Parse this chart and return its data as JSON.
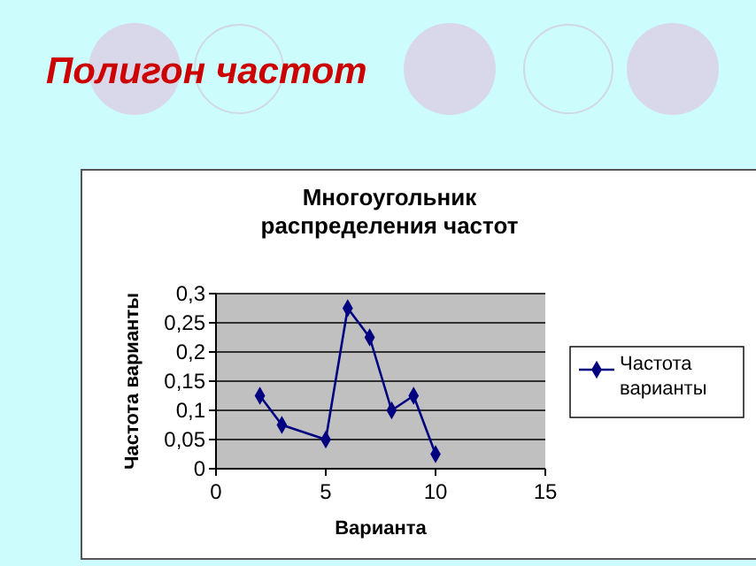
{
  "chart_data": {
    "type": "line",
    "title": "Полигон частот",
    "subtitle": "Многоугольник распределения частот",
    "xlabel": "Варианта",
    "ylabel": "Частота варианты",
    "x": [
      2,
      3,
      5,
      6,
      7,
      8,
      9,
      10
    ],
    "series": [
      {
        "name": "Частота варианты",
        "color": "#000080",
        "values": [
          0.125,
          0.075,
          0.05,
          0.275,
          0.225,
          0.1,
          0.125,
          0.025
        ]
      }
    ],
    "xlim": [
      0,
      15
    ],
    "xticks": [
      0,
      5,
      10,
      15
    ],
    "ylim": [
      0,
      0.3
    ],
    "yticks": [
      0,
      {
        "value": 0.05,
        "label": "0,05"
      },
      {
        "value": 0.1,
        "label": "0,1"
      },
      {
        "value": 0.15,
        "label": "0,15"
      },
      {
        "value": 0.2,
        "label": "0,2"
      },
      {
        "value": 0.25,
        "label": "0,25"
      },
      {
        "value": 0.3,
        "label": "0,3"
      }
    ],
    "grid": "y",
    "legend": "right",
    "marker": "diamond",
    "line_style": "solid"
  }
}
